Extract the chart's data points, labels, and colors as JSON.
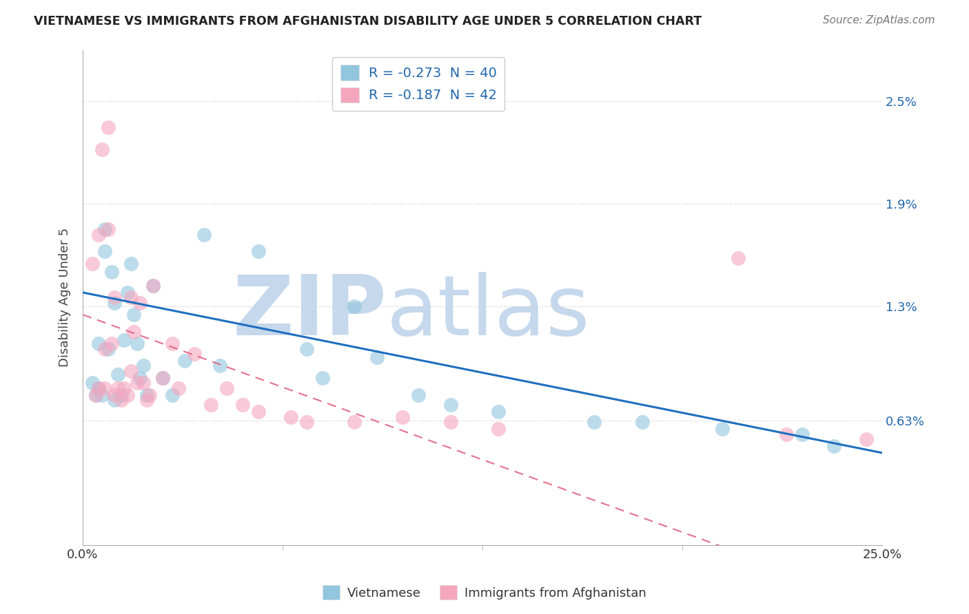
{
  "title": "VIETNAMESE VS IMMIGRANTS FROM AFGHANISTAN DISABILITY AGE UNDER 5 CORRELATION CHART",
  "source": "Source: ZipAtlas.com",
  "ylabel": "Disability Age Under 5",
  "xlim": [
    0.0,
    25.0
  ],
  "ylim": [
    -0.1,
    2.8
  ],
  "yticks": [
    0.63,
    1.3,
    1.9,
    2.5
  ],
  "ytick_labels": [
    "0.63%",
    "1.3%",
    "1.9%",
    "2.5%"
  ],
  "xticks": [
    0.0,
    25.0
  ],
  "xtick_labels": [
    "0.0%",
    "25.0%"
  ],
  "legend_r1": "R = -0.273  N = 40",
  "legend_r2": "R = -0.187  N = 42",
  "legend_label1": "Vietnamese",
  "legend_label2": "Immigrants from Afghanistan",
  "color_blue": "#92c5de",
  "color_pink": "#f4a6bf",
  "trend_blue": "#1f6fbf",
  "trend_pink": "#e06080",
  "watermark_zip": "ZIP",
  "watermark_atlas": "atlas",
  "watermark_color_zip": "#c5d8ec",
  "watermark_color_atlas": "#c5d8ec",
  "blue_trend_start": 1.38,
  "blue_trend_end": 0.44,
  "pink_trend_start": 1.25,
  "pink_trend_end": -0.45,
  "blue_x": [
    0.3,
    0.4,
    0.5,
    0.5,
    0.6,
    0.7,
    0.7,
    0.8,
    0.9,
    1.0,
    1.0,
    1.1,
    1.2,
    1.3,
    1.4,
    1.5,
    1.6,
    1.7,
    1.8,
    1.9,
    2.0,
    2.2,
    2.5,
    2.8,
    3.2,
    3.8,
    4.3,
    5.5,
    7.0,
    7.5,
    8.5,
    9.2,
    10.5,
    11.5,
    13.0,
    16.0,
    17.5,
    20.0,
    22.5,
    23.5
  ],
  "blue_y": [
    0.85,
    0.78,
    1.08,
    0.82,
    0.78,
    1.75,
    1.62,
    1.05,
    1.5,
    0.75,
    1.32,
    0.9,
    0.78,
    1.1,
    1.38,
    1.55,
    1.25,
    1.08,
    0.88,
    0.95,
    0.78,
    1.42,
    0.88,
    0.78,
    0.98,
    1.72,
    0.95,
    1.62,
    1.05,
    0.88,
    1.3,
    1.0,
    0.78,
    0.72,
    0.68,
    0.62,
    0.62,
    0.58,
    0.55,
    0.48
  ],
  "pink_x": [
    0.3,
    0.4,
    0.5,
    0.5,
    0.6,
    0.7,
    0.7,
    0.8,
    0.8,
    0.9,
    1.0,
    1.0,
    1.1,
    1.2,
    1.3,
    1.4,
    1.5,
    1.5,
    1.6,
    1.7,
    1.8,
    1.9,
    2.0,
    2.1,
    2.2,
    2.5,
    2.8,
    3.0,
    3.5,
    4.0,
    4.5,
    5.0,
    5.5,
    6.5,
    7.0,
    8.5,
    10.0,
    11.5,
    13.0,
    20.5,
    22.0,
    24.5
  ],
  "pink_y": [
    1.55,
    0.78,
    1.72,
    0.82,
    2.22,
    1.05,
    0.82,
    2.35,
    1.75,
    1.08,
    1.35,
    0.78,
    0.82,
    0.75,
    0.82,
    0.78,
    0.92,
    1.35,
    1.15,
    0.85,
    1.32,
    0.85,
    0.75,
    0.78,
    1.42,
    0.88,
    1.08,
    0.82,
    1.02,
    0.72,
    0.82,
    0.72,
    0.68,
    0.65,
    0.62,
    0.62,
    0.65,
    0.62,
    0.58,
    1.58,
    0.55,
    0.52
  ]
}
